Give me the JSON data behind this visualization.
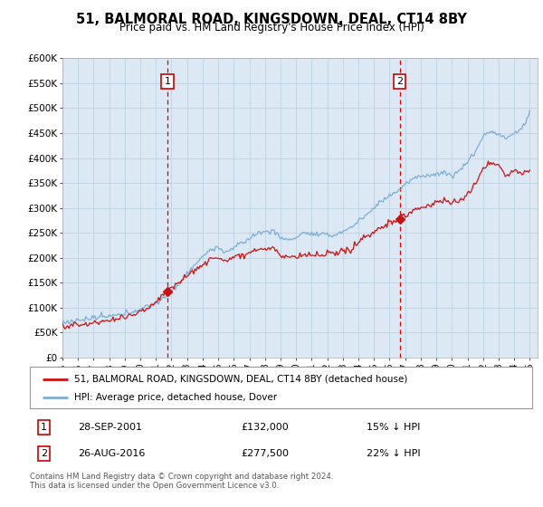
{
  "title": "51, BALMORAL ROAD, KINGSDOWN, DEAL, CT14 8BY",
  "subtitle": "Price paid vs. HM Land Registry's House Price Index (HPI)",
  "ylabel_ticks": [
    "£0",
    "£50K",
    "£100K",
    "£150K",
    "£200K",
    "£250K",
    "£300K",
    "£350K",
    "£400K",
    "£450K",
    "£500K",
    "£550K",
    "£600K"
  ],
  "ylim": [
    0,
    600000
  ],
  "xlim_start": 1995.0,
  "xlim_end": 2025.5,
  "sale1_date": 2001.74,
  "sale1_price": 132000,
  "sale1_label": "1",
  "sale1_text": "28-SEP-2001",
  "sale1_amount": "£132,000",
  "sale1_hpi": "15% ↓ HPI",
  "sale2_date": 2016.65,
  "sale2_price": 277500,
  "sale2_label": "2",
  "sale2_text": "26-AUG-2016",
  "sale2_amount": "£277,500",
  "sale2_hpi": "22% ↓ HPI",
  "legend_line1": "51, BALMORAL ROAD, KINGSDOWN, DEAL, CT14 8BY (detached house)",
  "legend_line2": "HPI: Average price, detached house, Dover",
  "footer": "Contains HM Land Registry data © Crown copyright and database right 2024.\nThis data is licensed under the Open Government Licence v3.0.",
  "hpi_color": "#7aaed6",
  "price_color": "#cc1111",
  "bg_color": "#dce9f5",
  "plot_bg": "#ffffff",
  "grid_color": "#b8cfe0",
  "vline_color": "#dd0000",
  "title_fontsize": 10.5,
  "subtitle_fontsize": 8.5
}
